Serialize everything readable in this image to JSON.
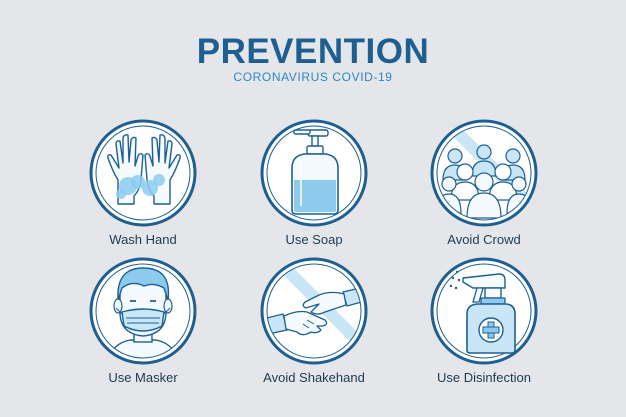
{
  "header": {
    "title": "PREVENTION",
    "subtitle": "CORONAVIRUS COVID-19"
  },
  "items": [
    {
      "label": "Wash Hand",
      "icon": "wash-hand-icon"
    },
    {
      "label": "Use Soap",
      "icon": "soap-bottle-icon"
    },
    {
      "label": "Avoid Crowd",
      "icon": "crowd-icon"
    },
    {
      "label": "Use Masker",
      "icon": "face-mask-icon"
    },
    {
      "label": "Avoid Shakehand",
      "icon": "handshake-icon"
    },
    {
      "label": "Use Disinfection",
      "icon": "spray-bottle-icon"
    }
  ],
  "colors": {
    "background": "#e4e6e9",
    "title": "#1e5f92",
    "subtitle": "#2c87c4",
    "ring": "#1e5f92",
    "fill_light": "#c9e6f6",
    "fill_mid": "#8ccbed",
    "label": "#1d3b52"
  }
}
